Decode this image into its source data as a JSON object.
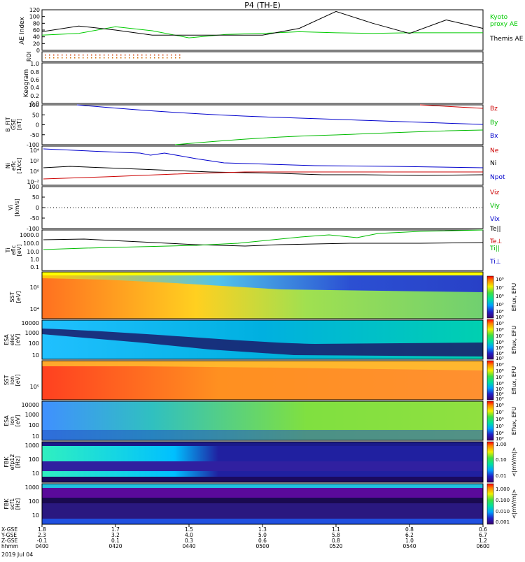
{
  "title": "P4 (TH-E)",
  "date_label": "2019 Jul 04",
  "footer_rows": [
    {
      "name": "X-GSE",
      "values": [
        "1.8",
        "1.7",
        "1.5",
        "1.3",
        "1.1",
        "0.8",
        "0.6"
      ]
    },
    {
      "name": "Y-GSE",
      "values": [
        "2.3",
        "3.2",
        "4.0",
        "5.0",
        "5.8",
        "6.2",
        "6.7"
      ]
    },
    {
      "name": "Z-GSE",
      "values": [
        "-0.1",
        "0.1",
        "0.3",
        "0.6",
        "0.8",
        "1.0",
        "1.2"
      ]
    },
    {
      "name": "hhmm",
      "values": [
        "0400",
        "0420",
        "0440",
        "0500",
        "0520",
        "0540",
        "0600"
      ]
    }
  ],
  "chart_data": [
    {
      "type": "line",
      "panel": "ae",
      "ylabel": "AE Index",
      "ylim": [
        0,
        120
      ],
      "yticks": [
        "0",
        "20",
        "40",
        "60",
        "80",
        "100",
        "120"
      ],
      "x_unit": "hhmm",
      "x": [
        "0400",
        "0410",
        "0420",
        "0430",
        "0440",
        "0450",
        "0500",
        "0510",
        "0520",
        "0530",
        "0540",
        "0550",
        "0600"
      ],
      "series": [
        {
          "name": "Kyoto proxy AE",
          "color": "#00cc00",
          "values": [
            45,
            50,
            70,
            58,
            37,
            47,
            50,
            55,
            52,
            50,
            52,
            52,
            52
          ]
        },
        {
          "name": "Themis AE",
          "color": "#000000",
          "values": [
            55,
            72,
            60,
            45,
            45,
            45,
            45,
            65,
            115,
            80,
            50,
            90,
            65
          ]
        }
      ],
      "legend": [
        "Kyoto",
        "proxy AE",
        "Themis AE"
      ]
    },
    {
      "type": "line",
      "panel": "roi",
      "ylabel": "ROI"
    },
    {
      "type": "heatmap",
      "panel": "keogram",
      "ylabel": "Keogram"
    },
    {
      "type": "line",
      "panel": "bfield",
      "ylabel": [
        "B_FIT",
        "GSE",
        "[nT]"
      ],
      "ylim": [
        -100,
        100
      ],
      "yticks": [
        "-100",
        "-50",
        "0",
        "50",
        "100"
      ],
      "series": [
        {
          "name": "Bz",
          "color": "#cc0000"
        },
        {
          "name": "By",
          "color": "#00cc00"
        },
        {
          "name": "Bx",
          "color": "#0000cc"
        }
      ]
    },
    {
      "type": "line",
      "panel": "density",
      "ylabel": [
        "Ni",
        "eflc",
        "[1/cc]"
      ],
      "yscale": "log",
      "yticks": [
        "10^-2",
        "10^0",
        "10^2",
        "10^4"
      ],
      "series": [
        {
          "name": "Ne",
          "color": "#cc0000"
        },
        {
          "name": "Ni",
          "color": "#000000"
        },
        {
          "name": "Npot",
          "color": "#0000cc"
        }
      ]
    },
    {
      "type": "line",
      "panel": "velocity",
      "ylabel": [
        "Vi",
        "[km/s]"
      ],
      "ylim": [
        -100,
        100
      ],
      "yticks": [
        "-100",
        "-50",
        "0",
        "50",
        "100"
      ],
      "series": [
        {
          "name": "Viz",
          "color": "#cc0000"
        },
        {
          "name": "Viy",
          "color": "#00cc00"
        },
        {
          "name": "Vix",
          "color": "#0000cc"
        }
      ]
    },
    {
      "type": "line",
      "panel": "temperature",
      "ylabel": [
        "Ti",
        "eflc",
        "[eV]"
      ],
      "yscale": "log",
      "yticks": [
        "0.1",
        "1.0",
        "10.0",
        "100.0",
        "1000.0"
      ],
      "series": [
        {
          "name": "Te||",
          "color": "#000000"
        },
        {
          "name": "Te⊥",
          "color": "#cc0000"
        },
        {
          "name": "Ti||",
          "color": "#00cc00"
        },
        {
          "name": "Ti⊥",
          "color": "#0000cc"
        }
      ]
    },
    {
      "type": "heatmap",
      "panel": "sst_e",
      "ylabel": [
        "SST",
        "[eV]"
      ],
      "yticks": [
        "10^5",
        "10^4"
      ],
      "colorbar_label": "Eflux, EFU",
      "colorbar_ticks": [
        "10^8",
        "10^7",
        "10^6",
        "10^5",
        "10^4",
        "10^3"
      ]
    },
    {
      "type": "heatmap",
      "panel": "esa_e",
      "ylabel": [
        "ESA",
        "elec",
        "[eV]"
      ],
      "yticks": [
        "10000",
        "1000",
        "100",
        "10"
      ],
      "colorbar_label": "Eflux, EFU",
      "colorbar_ticks": [
        "10^9",
        "10^8",
        "10^7",
        "10^6",
        "10^5",
        "10^4",
        "10^3"
      ]
    },
    {
      "type": "heatmap",
      "panel": "sst_i",
      "ylabel": [
        "SST",
        "ion",
        "[eV]"
      ],
      "yticks": [
        "10^5"
      ],
      "colorbar_label": "Eflux, EFU",
      "colorbar_ticks": [
        "10^9",
        "10^8",
        "10^7",
        "10^6",
        "10^5",
        "10^4",
        "10^3"
      ]
    },
    {
      "type": "heatmap",
      "panel": "esa_i",
      "ylabel": [
        "ESA",
        "ion",
        "[eV]"
      ],
      "yticks": [
        "10000",
        "1000",
        "100",
        "10"
      ],
      "colorbar_label": "Eflux, EFU",
      "colorbar_ticks": [
        "10^8",
        "10^7",
        "10^6",
        "10^5",
        "10^4",
        "10^3"
      ]
    },
    {
      "type": "heatmap",
      "panel": "fbk_e12",
      "ylabel": [
        "FBK",
        "efp12",
        "[Hz]"
      ],
      "yticks": [
        "1000",
        "100",
        "10"
      ],
      "colorbar_label": "<|mV/m|>",
      "colorbar_ticks": [
        "1.00",
        "0.10",
        "0.01"
      ]
    },
    {
      "type": "heatmap",
      "panel": "fbk_scm",
      "ylabel": [
        "FBK",
        "scf1",
        "[Hz]"
      ],
      "yticks": [
        "1000",
        "100",
        "10"
      ],
      "colorbar_label": "<|mV/m|>",
      "colorbar_ticks": [
        "1.000",
        "0.100",
        "0.010",
        "0.001"
      ]
    }
  ]
}
